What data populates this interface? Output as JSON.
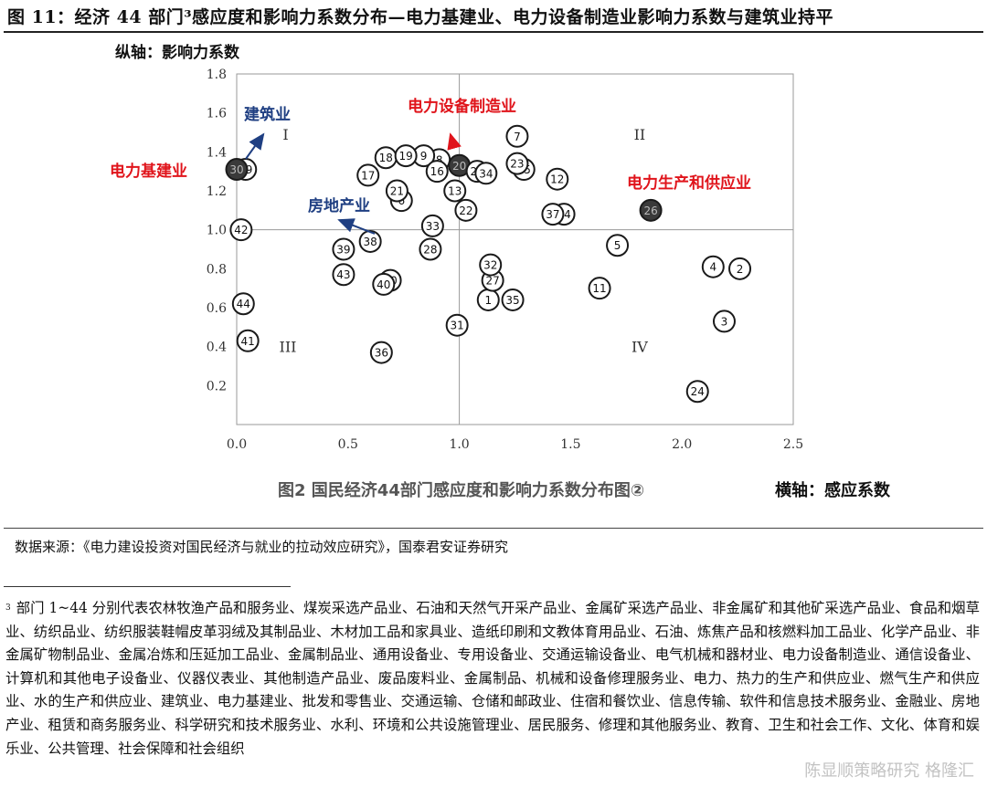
{
  "header": {
    "title": "图 11：经济 44 部门³感应度和影响力系数分布—电力基建业、电力设备制造业影响力系数与建筑业持平"
  },
  "chart_data": {
    "type": "scatter",
    "ylabel": "纵轴：影响力系数",
    "xlabel": "横轴：感应系数",
    "caption": "图2 国民经济44部门感应度和影响力系数分布图②",
    "xlim": [
      0,
      2.5
    ],
    "ylim": [
      0,
      1.8
    ],
    "xticks": [
      "0.0",
      "0.5",
      "1.0",
      "1.5",
      "2.0",
      "2.5"
    ],
    "yticks": [
      "0.2",
      "0.4",
      "0.6",
      "0.8",
      "1.0",
      "1.2",
      "1.4",
      "1.6",
      "1.8"
    ],
    "divider": {
      "x": 1.0,
      "y": 1.0
    },
    "quadrants": [
      "I",
      "II",
      "III",
      "IV"
    ],
    "highlight_color": "#3a3a3a",
    "label_colors": {
      "red": "#e0141b",
      "blue": "#1f3f82"
    },
    "points": [
      {
        "id": "1",
        "x": 1.13,
        "y": 0.64
      },
      {
        "id": "2",
        "x": 2.26,
        "y": 0.8
      },
      {
        "id": "3",
        "x": 2.19,
        "y": 0.53
      },
      {
        "id": "4",
        "x": 2.14,
        "y": 0.81
      },
      {
        "id": "5",
        "x": 1.71,
        "y": 0.92
      },
      {
        "id": "6",
        "x": 0.74,
        "y": 1.15
      },
      {
        "id": "7",
        "x": 1.26,
        "y": 1.48
      },
      {
        "id": "8",
        "x": 0.91,
        "y": 1.36
      },
      {
        "id": "9",
        "x": 0.84,
        "y": 1.38
      },
      {
        "id": "10",
        "x": 0.69,
        "y": 0.74
      },
      {
        "id": "11",
        "x": 1.63,
        "y": 0.7
      },
      {
        "id": "12",
        "x": 1.44,
        "y": 1.26
      },
      {
        "id": "13",
        "x": 0.98,
        "y": 1.2
      },
      {
        "id": "14",
        "x": 1.47,
        "y": 1.08
      },
      {
        "id": "15",
        "x": 1.29,
        "y": 1.31
      },
      {
        "id": "16",
        "x": 0.9,
        "y": 1.3
      },
      {
        "id": "17",
        "x": 0.59,
        "y": 1.28
      },
      {
        "id": "18",
        "x": 0.67,
        "y": 1.37
      },
      {
        "id": "19",
        "x": 0.76,
        "y": 1.38
      },
      {
        "id": "20",
        "x": 1.0,
        "y": 1.33,
        "highlight": true
      },
      {
        "id": "21",
        "x": 0.72,
        "y": 1.2
      },
      {
        "id": "22",
        "x": 1.03,
        "y": 1.1
      },
      {
        "id": "23",
        "x": 1.26,
        "y": 1.34
      },
      {
        "id": "24",
        "x": 2.07,
        "y": 0.17
      },
      {
        "id": "25",
        "x": 1.08,
        "y": 1.3
      },
      {
        "id": "26",
        "x": 1.86,
        "y": 1.1,
        "highlight": true
      },
      {
        "id": "27",
        "x": 1.15,
        "y": 0.74
      },
      {
        "id": "28",
        "x": 0.87,
        "y": 0.9
      },
      {
        "id": "29",
        "x": 0.04,
        "y": 1.31
      },
      {
        "id": "30",
        "x": 0.0,
        "y": 1.31,
        "highlight": true
      },
      {
        "id": "31",
        "x": 0.99,
        "y": 0.51
      },
      {
        "id": "32",
        "x": 1.14,
        "y": 0.82
      },
      {
        "id": "33",
        "x": 0.88,
        "y": 1.02
      },
      {
        "id": "34",
        "x": 1.12,
        "y": 1.29
      },
      {
        "id": "35",
        "x": 1.24,
        "y": 0.64
      },
      {
        "id": "36",
        "x": 0.65,
        "y": 0.37
      },
      {
        "id": "37",
        "x": 1.42,
        "y": 1.08
      },
      {
        "id": "38",
        "x": 0.6,
        "y": 0.94
      },
      {
        "id": "39",
        "x": 0.48,
        "y": 0.9
      },
      {
        "id": "40",
        "x": 0.66,
        "y": 0.72
      },
      {
        "id": "41",
        "x": 0.05,
        "y": 0.43
      },
      {
        "id": "42",
        "x": 0.02,
        "y": 1.0
      },
      {
        "id": "43",
        "x": 0.48,
        "y": 0.77
      },
      {
        "id": "44",
        "x": 0.03,
        "y": 0.62
      }
    ],
    "annotations": [
      {
        "text": "建筑业",
        "color": "blue",
        "target": [
          0.12,
          1.49
        ]
      },
      {
        "text": "电力设备制造业",
        "color": "red",
        "target": [
          0.96,
          1.49
        ]
      },
      {
        "text": "电力基建业",
        "color": "red"
      },
      {
        "text": "电力生产和供应业",
        "color": "red"
      },
      {
        "text": "房地产业",
        "color": "blue",
        "target": [
          0.46,
          1.05
        ]
      }
    ]
  },
  "source": "数据来源：《电力建设投资对国民经济与就业的拉动效应研究》，国泰君安证券研究",
  "footnote": {
    "mark": "3",
    "text": "部门 1~44 分别代表农林牧渔产品和服务业、煤炭采选产品业、石油和天然气开采产品业、金属矿采选产品业、非金属矿和其他矿采选产品业、食品和烟草业、纺织品业、纺织服装鞋帽皮革羽绒及其制品业、木材加工品和家具业、造纸印刷和文教体育用品业、石油、炼焦产品和核燃料加工品业、化学产品业、非金属矿物制品业、金属冶炼和压延加工品业、金属制品业、通用设备业、专用设备业、交通运输设备业、电气机械和器材业、电力设备制造业、通信设备业、计算机和其他电子设备业、仪器仪表业、其他制造产品业、废品废料业、金属制品、机械和设备修理服务业、电力、热力的生产和供应业、燃气生产和供应业、水的生产和供应业、建筑业、电力基建业、批发和零售业、交通运输、仓储和邮政业、住宿和餐饮业、信息传输、软件和信息技术服务业、金融业、房地产业、租赁和商务服务业、科学研究和技术服务业、水利、环境和公共设施管理业、居民服务、修理和其他服务业、教育、卫生和社会工作、文化、体育和娱乐业、公共管理、社会保障和社会组织"
  },
  "watermark": "陈显顺策略研究 格隆汇"
}
